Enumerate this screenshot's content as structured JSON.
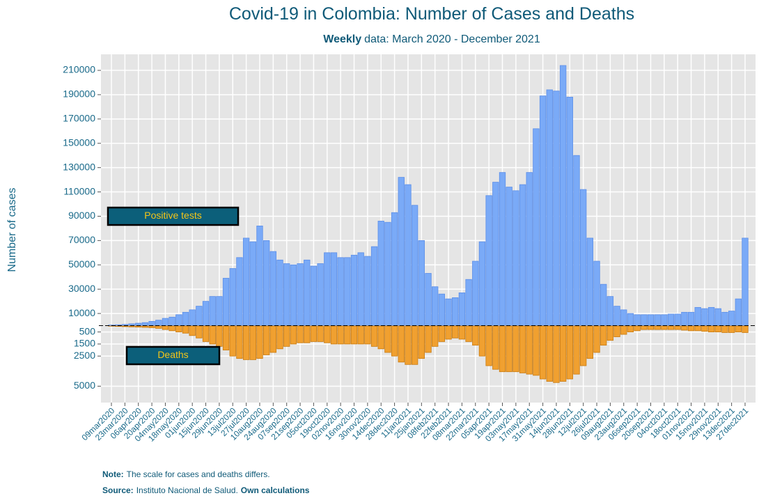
{
  "chart_data": {
    "type": "bar",
    "title": "Covid-19 in Colombia: Number of Cases and Deaths",
    "subtitle": {
      "bold": "Weekly",
      "text": "data: March 2020 - December 2021"
    },
    "y_label": "Number of cases",
    "categories": [
      "09mar2020",
      null,
      "23mar2020",
      null,
      "06apr2020",
      null,
      "20apr2020",
      null,
      "04may2020",
      null,
      "18may2020",
      null,
      "01jun2020",
      null,
      "15jun2020",
      null,
      "29jun2020",
      null,
      "13jul2020",
      null,
      "27jul2020",
      null,
      "10aug2020",
      null,
      "24aug2020",
      null,
      "07sep2020",
      null,
      "21sep2020",
      null,
      "05oct2020",
      null,
      "19oct2020",
      null,
      "02nov2020",
      null,
      "16nov2020",
      null,
      "30nov2020",
      null,
      "14dec2020",
      null,
      "28dec2020",
      null,
      "11jan2021",
      null,
      "25jan2021",
      null,
      "08feb2021",
      null,
      "22feb2021",
      null,
      "08mar2021",
      null,
      "22mar2021",
      null,
      "05apr2021",
      null,
      "19apr2021",
      null,
      "03may2021",
      null,
      "17may2021",
      null,
      "31may2021",
      null,
      "14jun2021",
      null,
      "28jun2021",
      null,
      "12jul2021",
      null,
      "26jul2021",
      null,
      "09aug2021",
      null,
      "23aug2021",
      null,
      "06sep2021",
      null,
      "20sep2021",
      null,
      "04oct2021",
      null,
      "18oct2021",
      null,
      "01nov2021",
      null,
      "15nov2021",
      null,
      "29nov2021",
      null,
      "13dec2021",
      null,
      "27dec2021"
    ],
    "series": [
      {
        "name": "Positive tests",
        "color": "#7aaaf7",
        "values": [
          500,
          700,
          1000,
          1500,
          2000,
          2500,
          3500,
          4500,
          6000,
          7000,
          9000,
          11000,
          13000,
          16000,
          20000,
          24000,
          24000,
          39000,
          47000,
          56000,
          72000,
          69000,
          82000,
          70000,
          61000,
          54000,
          51000,
          50000,
          51000,
          54000,
          49000,
          51000,
          60000,
          60000,
          56000,
          56000,
          58000,
          60000,
          57000,
          65000,
          86000,
          85000,
          93000,
          122000,
          116000,
          99000,
          70000,
          43000,
          32000,
          26000,
          22000,
          23000,
          27000,
          38000,
          53000,
          69000,
          107000,
          118000,
          126000,
          114000,
          111000,
          116000,
          126000,
          162000,
          189000,
          194000,
          193000,
          214000,
          188000,
          140000,
          112000,
          72000,
          53000,
          34000,
          24000,
          16000,
          13000,
          10000,
          9000,
          9000,
          9000,
          9000,
          9000,
          9500,
          9500,
          11000,
          11000,
          15000,
          14000,
          15000,
          14000,
          11000,
          12000,
          22000,
          72000
        ]
      },
      {
        "name": "Deaths",
        "color": "#f0a030",
        "axis": "y2",
        "values": [
          20,
          40,
          60,
          80,
          100,
          120,
          150,
          200,
          300,
          400,
          500,
          600,
          800,
          1000,
          1300,
          1500,
          1700,
          2000,
          2500,
          2700,
          2800,
          2800,
          2700,
          2400,
          2200,
          1900,
          1700,
          1500,
          1400,
          1400,
          1300,
          1300,
          1400,
          1500,
          1500,
          1500,
          1500,
          1500,
          1500,
          1700,
          1900,
          2200,
          2500,
          3000,
          3200,
          3200,
          2700,
          2200,
          1700,
          1300,
          1100,
          1000,
          1100,
          1300,
          1600,
          2500,
          3300,
          3600,
          3800,
          3800,
          3800,
          3900,
          4000,
          4100,
          4400,
          4600,
          4700,
          4600,
          4400,
          4000,
          3300,
          2700,
          2200,
          1600,
          1200,
          900,
          700,
          500,
          400,
          300,
          300,
          300,
          300,
          300,
          300,
          350,
          400,
          400,
          450,
          500,
          500,
          550,
          550,
          500,
          550
        ]
      }
    ],
    "ylim": [
      -63300,
      223200
    ],
    "yticks": [
      10000,
      30000,
      50000,
      70000,
      90000,
      110000,
      130000,
      150000,
      170000,
      190000,
      210000
    ],
    "y2lim": [
      6360,
      -22540
    ],
    "y2ticks": [
      500,
      1500,
      2500,
      5000
    ],
    "grid": true,
    "note": {
      "label": "Note:",
      "text": "The scale for cases and deaths differs."
    },
    "source": {
      "label": "Source:",
      "text": "Instituto Nacional de Salud.",
      "bold": "Own calculations"
    }
  }
}
